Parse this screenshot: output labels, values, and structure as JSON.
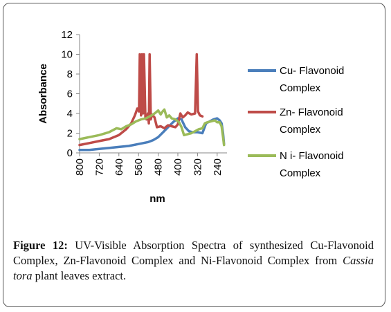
{
  "caption": {
    "figure_label": "Figure 12:",
    "text_before": " UV-Visible Absorption Spectra of synthesized Cu-Flavonoid Complex, Zn-Flavonoid Complex and Ni-Flavonoid Complex from ",
    "species": "Cassia tora",
    "text_after": " plant leaves extract."
  },
  "chart_data": {
    "type": "line",
    "title": "",
    "xlabel": "nm",
    "ylabel": "Absorbance",
    "xlim": [
      800,
      200
    ],
    "ylim": [
      0,
      12
    ],
    "x_ticks": [
      800,
      720,
      640,
      560,
      480,
      400,
      320,
      240
    ],
    "y_ticks": [
      0,
      2,
      4,
      6,
      8,
      10,
      12
    ],
    "grid": false,
    "legend_position": "right",
    "series": [
      {
        "name": "Cu- Flavonoid Complex",
        "color": "#4a7ebb",
        "points": [
          [
            800,
            0.3
          ],
          [
            760,
            0.3
          ],
          [
            720,
            0.4
          ],
          [
            680,
            0.5
          ],
          [
            640,
            0.6
          ],
          [
            600,
            0.7
          ],
          [
            560,
            0.9
          ],
          [
            520,
            1.1
          ],
          [
            500,
            1.3
          ],
          [
            480,
            1.6
          ],
          [
            460,
            2.1
          ],
          [
            440,
            2.6
          ],
          [
            420,
            3.1
          ],
          [
            400,
            3.5
          ],
          [
            385,
            3.4
          ],
          [
            370,
            2.6
          ],
          [
            355,
            2.2
          ],
          [
            340,
            2.1
          ],
          [
            320,
            2.1
          ],
          [
            300,
            2.0
          ],
          [
            285,
            3.0
          ],
          [
            270,
            3.2
          ],
          [
            255,
            3.4
          ],
          [
            240,
            3.5
          ],
          [
            230,
            3.3
          ],
          [
            222,
            3.0
          ],
          [
            216,
            2.0
          ],
          [
            212,
            0.9
          ]
        ]
      },
      {
        "name": "Zn- Flavonoid Complex",
        "color": "#be4b48",
        "points": [
          [
            800,
            0.8
          ],
          [
            760,
            1.0
          ],
          [
            720,
            1.2
          ],
          [
            680,
            1.4
          ],
          [
            640,
            1.8
          ],
          [
            610,
            2.4
          ],
          [
            590,
            3.0
          ],
          [
            575,
            3.8
          ],
          [
            565,
            4.5
          ],
          [
            558,
            4.2
          ],
          [
            555,
            10.0
          ],
          [
            550,
            3.8
          ],
          [
            546,
            10.0
          ],
          [
            542,
            4.0
          ],
          [
            538,
            10.0
          ],
          [
            532,
            3.6
          ],
          [
            528,
            3.4
          ],
          [
            522,
            4.0
          ],
          [
            518,
            3.0
          ],
          [
            515,
            10.0
          ],
          [
            510,
            3.4
          ],
          [
            505,
            3.9
          ],
          [
            495,
            3.6
          ],
          [
            485,
            2.6
          ],
          [
            470,
            2.7
          ],
          [
            455,
            2.5
          ],
          [
            440,
            2.8
          ],
          [
            425,
            2.7
          ],
          [
            410,
            2.6
          ],
          [
            400,
            2.9
          ],
          [
            390,
            4.0
          ],
          [
            380,
            3.6
          ],
          [
            370,
            3.8
          ],
          [
            360,
            4.1
          ],
          [
            345,
            3.9
          ],
          [
            330,
            4.0
          ],
          [
            323,
            10.0
          ],
          [
            318,
            4.2
          ],
          [
            310,
            3.8
          ],
          [
            300,
            3.7
          ]
        ]
      },
      {
        "name": "N i- Flavonoid Complex",
        "color": "#9bbb59",
        "points": [
          [
            800,
            1.4
          ],
          [
            760,
            1.6
          ],
          [
            720,
            1.8
          ],
          [
            680,
            2.1
          ],
          [
            650,
            2.5
          ],
          [
            630,
            2.4
          ],
          [
            610,
            2.7
          ],
          [
            590,
            2.9
          ],
          [
            570,
            3.2
          ],
          [
            550,
            3.4
          ],
          [
            530,
            3.5
          ],
          [
            515,
            3.7
          ],
          [
            500,
            3.9
          ],
          [
            490,
            4.1
          ],
          [
            480,
            4.3
          ],
          [
            470,
            3.9
          ],
          [
            462,
            4.2
          ],
          [
            455,
            4.4
          ],
          [
            445,
            3.6
          ],
          [
            435,
            3.8
          ],
          [
            425,
            3.5
          ],
          [
            410,
            3.4
          ],
          [
            395,
            3.1
          ],
          [
            385,
            2.6
          ],
          [
            375,
            1.8
          ],
          [
            360,
            1.9
          ],
          [
            345,
            2.0
          ],
          [
            330,
            2.2
          ],
          [
            315,
            2.4
          ],
          [
            300,
            2.5
          ],
          [
            290,
            3.0
          ],
          [
            280,
            3.1
          ],
          [
            265,
            3.2
          ],
          [
            250,
            3.3
          ],
          [
            240,
            3.1
          ],
          [
            230,
            3.1
          ],
          [
            222,
            2.7
          ],
          [
            216,
            1.6
          ],
          [
            212,
            0.8
          ]
        ]
      }
    ]
  }
}
